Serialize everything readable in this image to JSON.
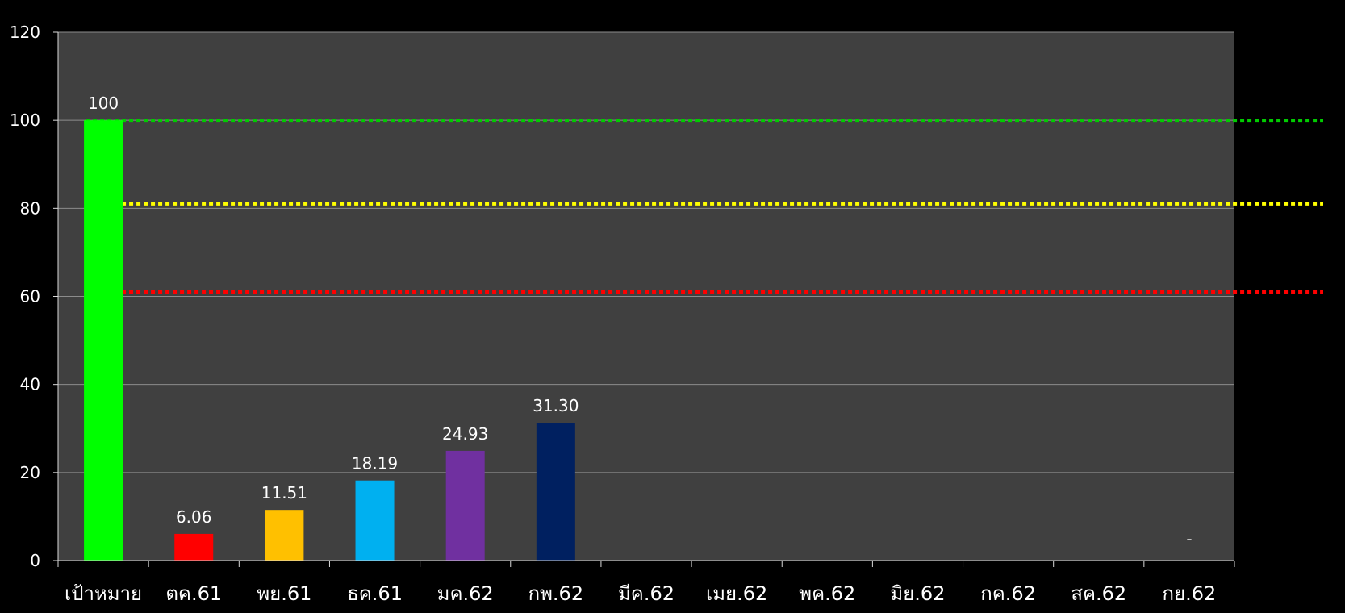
{
  "chart_data": {
    "type": "bar",
    "title": "",
    "xlabel": "",
    "ylabel": "",
    "ylim": [
      0,
      120
    ],
    "yticks": [
      0,
      20,
      40,
      60,
      80,
      100,
      120
    ],
    "grid": true,
    "legend": "none",
    "categories": [
      "เป้าหมาย",
      "ตค.61",
      "พย.61",
      "ธค.61",
      "มค.62",
      "กพ.62",
      "มีค.62",
      "เมย.62",
      "พค.62",
      "มิย.62",
      "กค.62",
      "สค.62",
      "กย.62"
    ],
    "values": [
      100,
      6.06,
      11.51,
      18.19,
      24.93,
      31.3,
      null,
      null,
      null,
      null,
      null,
      null,
      null
    ],
    "data_labels": [
      "100",
      "6.06",
      "11.51",
      "18.19",
      "24.93",
      "31.30",
      "",
      "",
      "",
      "",
      "",
      "",
      "-"
    ],
    "bar_colors": [
      "#00ff00",
      "#ff0000",
      "#ffc000",
      "#00b0f0",
      "#7030a0",
      "#002060",
      "#ffffff",
      "#ffffff",
      "#ffffff",
      "#ffffff",
      "#ffffff",
      "#ffffff",
      "#ffffff"
    ],
    "reference_lines": [
      {
        "value": 100,
        "color": "#00cc00",
        "style": "dotted"
      },
      {
        "value": 81,
        "color": "#ffff00",
        "style": "dotted"
      },
      {
        "value": 61,
        "color": "#ff0000",
        "style": "dotted"
      }
    ],
    "colors": {
      "background": "#000000",
      "plot_background": "#404040",
      "gridline": "#8c8c8c",
      "axis": "#d9d9d9",
      "text": "#ffffff"
    }
  }
}
